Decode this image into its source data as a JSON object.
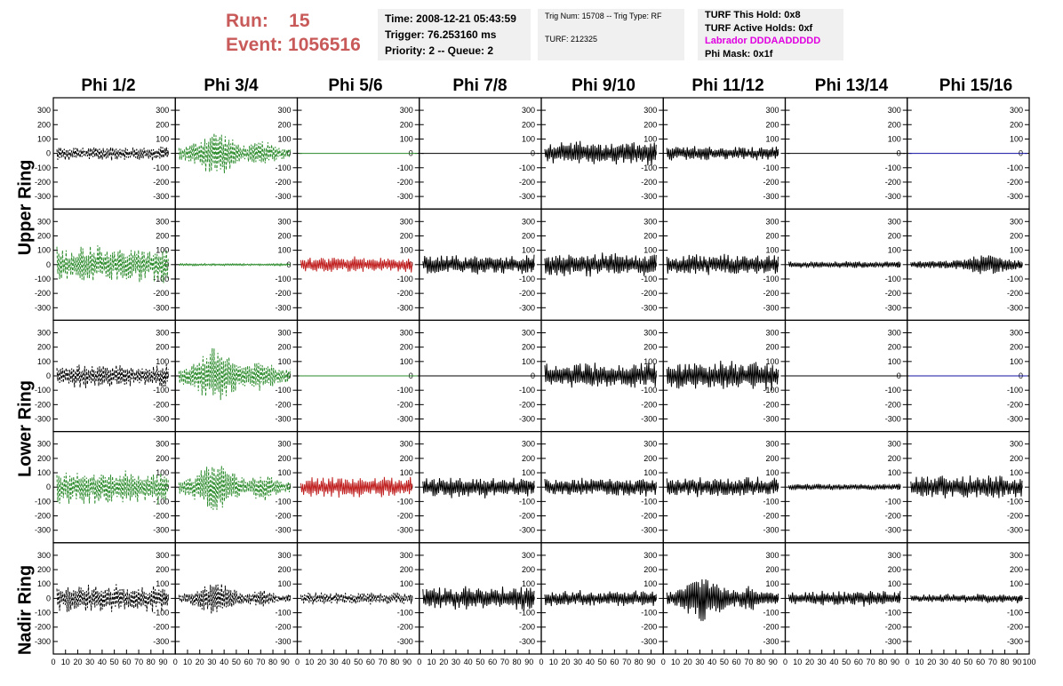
{
  "header": {
    "run_label": "Run:",
    "run_value": "15",
    "event_label": "Event:",
    "event_value": "1056516",
    "time": "Time: 2008-12-21 05:43:59",
    "trigger": "Trigger: 76.253160 ms",
    "priority": "Priority: 2 -- Queue: 2",
    "trig_num": "Trig Num: 15708 -- Trig Type: RF",
    "turf": "TURF: 212325",
    "turf_this_hold": "TURF This Hold: 0x8",
    "turf_active_holds": "TURF Active Holds: 0xf",
    "labrador": "Labrador DDDAADDDDD",
    "phi_mask": "Phi Mask: 0x1f"
  },
  "columns": [
    "Phi 1/2",
    "Phi 3/4",
    "Phi 5/6",
    "Phi 7/8",
    "Phi 9/10",
    "Phi 11/12",
    "Phi 13/14",
    "Phi 15/16"
  ],
  "row_groups": [
    "Upper Ring",
    "Lower Ring",
    "Nadir Ring"
  ],
  "y_ticks": [
    "300",
    "200",
    "100",
    "0",
    "-100",
    "-200",
    "-300"
  ],
  "x_ticks": [
    "0",
    "10",
    "20",
    "30",
    "40",
    "50",
    "60",
    "70",
    "80",
    "90",
    "100"
  ],
  "colors": {
    "run_text": "#c85a5a",
    "labrador_text": "#e000e0",
    "black_trace": "#000000",
    "green_trace": "#2a8a2a",
    "red_trace": "#c02020",
    "blue_trace": "#1010a0",
    "info_bg": "#f0f0f0"
  },
  "traces": [
    [
      {
        "color": "black",
        "dashed": true,
        "amp": 55,
        "env": "flat",
        "flat": false
      },
      {
        "color": "green",
        "dashed": true,
        "amp": 160,
        "env": "early",
        "flat": false
      },
      {
        "color": "green",
        "dashed": false,
        "amp": 0,
        "env": "flat",
        "flat": true
      },
      {
        "color": "black",
        "dashed": false,
        "amp": 0,
        "env": "flat",
        "flat": true
      },
      {
        "color": "black",
        "dashed": false,
        "amp": 90,
        "env": "flat",
        "flat": false
      },
      {
        "color": "black",
        "dashed": false,
        "amp": 55,
        "env": "flat",
        "flat": false
      },
      {
        "color": "black",
        "dashed": false,
        "amp": 0,
        "env": "flat",
        "flat": true
      },
      {
        "color": "blue",
        "dashed": false,
        "amp": 0,
        "env": "flat",
        "flat": true
      }
    ],
    [
      {
        "color": "green",
        "dashed": true,
        "amp": 140,
        "env": "flat",
        "flat": false
      },
      {
        "color": "green",
        "dashed": false,
        "amp": 8,
        "env": "flat",
        "flat": false
      },
      {
        "color": "red",
        "dashed": false,
        "amp": 60,
        "env": "flat",
        "flat": false
      },
      {
        "color": "black",
        "dashed": false,
        "amp": 75,
        "env": "flat",
        "flat": false
      },
      {
        "color": "black",
        "dashed": false,
        "amp": 90,
        "env": "flat",
        "flat": false
      },
      {
        "color": "black",
        "dashed": false,
        "amp": 80,
        "env": "flat",
        "flat": false
      },
      {
        "color": "black",
        "dashed": false,
        "amp": 25,
        "env": "flat",
        "flat": false
      },
      {
        "color": "black",
        "dashed": false,
        "amp": 70,
        "env": "late",
        "flat": false
      }
    ],
    [
      {
        "color": "black",
        "dashed": true,
        "amp": 90,
        "env": "flat",
        "flat": false
      },
      {
        "color": "green",
        "dashed": true,
        "amp": 200,
        "env": "early",
        "flat": false
      },
      {
        "color": "green",
        "dashed": false,
        "amp": 0,
        "env": "flat",
        "flat": true
      },
      {
        "color": "black",
        "dashed": false,
        "amp": 0,
        "env": "flat",
        "flat": true
      },
      {
        "color": "black",
        "dashed": false,
        "amp": 100,
        "env": "flat",
        "flat": false
      },
      {
        "color": "black",
        "dashed": false,
        "amp": 110,
        "env": "flat",
        "flat": false
      },
      {
        "color": "black",
        "dashed": false,
        "amp": 0,
        "env": "flat",
        "flat": true
      },
      {
        "color": "blue",
        "dashed": false,
        "amp": 0,
        "env": "flat",
        "flat": true
      }
    ],
    [
      {
        "color": "green",
        "dashed": true,
        "amp": 130,
        "env": "flat",
        "flat": false
      },
      {
        "color": "green",
        "dashed": true,
        "amp": 180,
        "env": "early",
        "flat": false
      },
      {
        "color": "red",
        "dashed": false,
        "amp": 80,
        "env": "flat",
        "flat": false
      },
      {
        "color": "black",
        "dashed": false,
        "amp": 80,
        "env": "flat",
        "flat": false
      },
      {
        "color": "black",
        "dashed": false,
        "amp": 70,
        "env": "flat",
        "flat": false
      },
      {
        "color": "black",
        "dashed": false,
        "amp": 75,
        "env": "flat",
        "flat": false
      },
      {
        "color": "black",
        "dashed": false,
        "amp": 25,
        "env": "flat",
        "flat": false
      },
      {
        "color": "black",
        "dashed": false,
        "amp": 90,
        "env": "flat",
        "flat": false
      }
    ],
    [
      {
        "color": "black",
        "dashed": true,
        "amp": 110,
        "env": "flat",
        "flat": false
      },
      {
        "color": "black",
        "dashed": true,
        "amp": 110,
        "env": "early",
        "flat": false
      },
      {
        "color": "black",
        "dashed": true,
        "amp": 45,
        "env": "flat",
        "flat": false
      },
      {
        "color": "black",
        "dashed": false,
        "amp": 90,
        "env": "flat",
        "flat": false
      },
      {
        "color": "black",
        "dashed": false,
        "amp": 60,
        "env": "flat",
        "flat": false
      },
      {
        "color": "black",
        "dashed": false,
        "amp": 160,
        "env": "early",
        "flat": false
      },
      {
        "color": "black",
        "dashed": false,
        "amp": 60,
        "env": "flat",
        "flat": false
      },
      {
        "color": "black",
        "dashed": false,
        "amp": 35,
        "env": "flat",
        "flat": false
      }
    ]
  ]
}
